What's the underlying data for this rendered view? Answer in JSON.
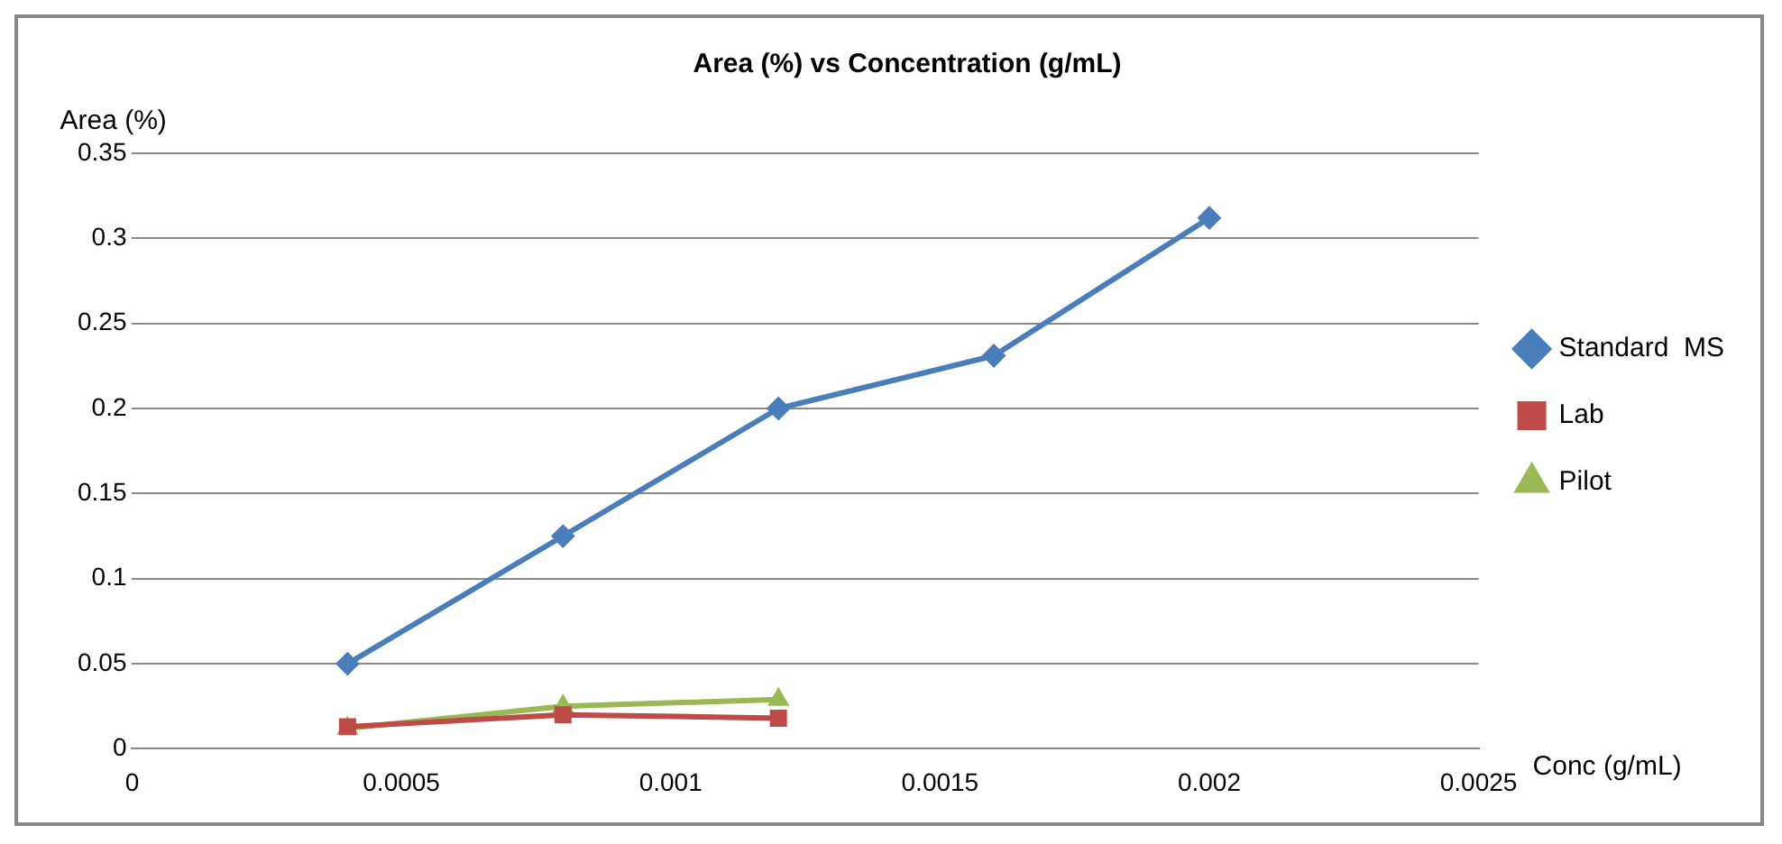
{
  "chart_data": {
    "type": "line",
    "title": "Area (%) vs Concentration (g/mL)",
    "xlabel": "Conc (g/mL)",
    "ylabel": "Area (%)",
    "xlim": [
      0,
      0.0025
    ],
    "xticks": [
      0,
      0.0005,
      0.001,
      0.0015,
      0.002,
      0.0025
    ],
    "ylim": [
      0,
      0.35
    ],
    "yticks": [
      0,
      0.05,
      0.1,
      0.15,
      0.2,
      0.25,
      0.3,
      0.35
    ],
    "grid": "y",
    "legend": "right",
    "line_style": "solid",
    "series": [
      {
        "name": "Standard  MS",
        "color": "#4a7ebb",
        "marker": "diamond",
        "x": [
          0.0004,
          0.0008,
          0.0012,
          0.0016,
          0.002
        ],
        "values": [
          0.05,
          0.125,
          0.2,
          0.231,
          0.312
        ]
      },
      {
        "name": "Lab",
        "color": "#be4b48",
        "marker": "square",
        "x": [
          0.0004,
          0.0008,
          0.0012
        ],
        "values": [
          0.013,
          0.02,
          0.018
        ]
      },
      {
        "name": "Pilot",
        "color": "#98b954",
        "marker": "triangle",
        "x": [
          0.0004,
          0.0008,
          0.0012
        ],
        "values": [
          0.012,
          0.025,
          0.029
        ]
      }
    ]
  }
}
